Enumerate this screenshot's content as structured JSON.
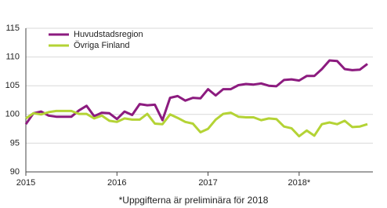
{
  "chart_data": {
    "type": "line",
    "footnote": "*Uppgifterna är preliminära för 2018",
    "categories": [
      "2015",
      null,
      null,
      null,
      null,
      null,
      null,
      null,
      null,
      null,
      null,
      null,
      "2016",
      null,
      null,
      null,
      null,
      null,
      null,
      null,
      null,
      null,
      null,
      null,
      "2017",
      null,
      null,
      null,
      null,
      null,
      null,
      null,
      null,
      null,
      null,
      null,
      "2018*",
      null,
      null,
      null,
      null,
      null,
      null,
      null,
      null,
      null
    ],
    "series": [
      {
        "name": "Huvudstadsregion",
        "color": "#8c1b7f",
        "values": [
          98.3,
          100.2,
          100.5,
          99.8,
          99.6,
          99.6,
          99.6,
          100.7,
          101.5,
          99.7,
          100.3,
          100.2,
          99.2,
          100.5,
          99.9,
          101.8,
          101.6,
          101.7,
          99.0,
          102.9,
          103.2,
          102.4,
          102.9,
          102.8,
          104.4,
          103.3,
          104.4,
          104.4,
          105.1,
          105.3,
          105.2,
          105.4,
          105.0,
          104.9,
          106.0,
          106.1,
          105.9,
          106.7,
          106.7,
          107.9,
          109.4,
          109.3,
          107.9,
          107.7,
          107.8,
          108.8
        ]
      },
      {
        "name": "Övriga Finland",
        "color": "#b4d335",
        "values": [
          99.3,
          100.2,
          100.0,
          100.4,
          100.6,
          100.6,
          100.6,
          100.1,
          100.1,
          99.3,
          99.8,
          98.9,
          98.7,
          99.3,
          99.1,
          99.1,
          100.1,
          98.4,
          98.3,
          100.0,
          99.4,
          98.7,
          98.4,
          96.9,
          97.5,
          99.1,
          100.1,
          100.3,
          99.6,
          99.5,
          99.5,
          99.0,
          99.3,
          99.2,
          97.9,
          97.6,
          96.2,
          97.2,
          96.3,
          98.3,
          98.6,
          98.3,
          98.9,
          97.8,
          97.9,
          98.3
        ]
      }
    ],
    "ylim": [
      90,
      115
    ],
    "yticks": [
      90,
      95,
      100,
      105,
      110,
      115
    ],
    "grid": true,
    "legend": "top-left"
  }
}
